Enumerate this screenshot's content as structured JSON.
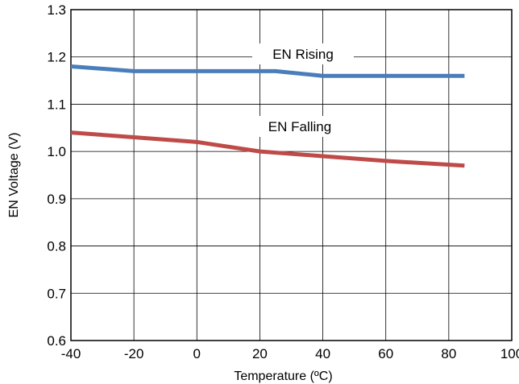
{
  "chart_data": {
    "type": "line",
    "title": "",
    "xlabel": "Temperature (ºC)",
    "ylabel": "EN Voltage (V)",
    "xlim": [
      -40,
      100
    ],
    "ylim": [
      0.6,
      1.3
    ],
    "xticks": [
      -40,
      -20,
      0,
      20,
      40,
      60,
      80,
      100
    ],
    "xtick_labels": [
      "-40",
      "-20",
      "0",
      "20",
      "40",
      "60",
      "80",
      "100"
    ],
    "yticks": [
      0.6,
      0.7,
      0.8,
      0.9,
      1.0,
      1.1,
      1.2,
      1.3
    ],
    "ytick_labels": [
      "0.6",
      "0.7",
      "0.8",
      "0.9",
      "1.0",
      "1.1",
      "1.2",
      "1.3"
    ],
    "grid": true,
    "legend": "none",
    "series": [
      {
        "name": "EN Rising",
        "color": "#4a7ebb",
        "x": [
          -40,
          -20,
          0,
          25,
          40,
          60,
          85
        ],
        "y": [
          1.18,
          1.17,
          1.17,
          1.17,
          1.16,
          1.16,
          1.16
        ]
      },
      {
        "name": "EN Falling",
        "color": "#be4b48",
        "x": [
          -40,
          -20,
          0,
          20,
          40,
          60,
          85
        ],
        "y": [
          1.04,
          1.03,
          1.02,
          1.0,
          0.99,
          0.98,
          0.97
        ]
      }
    ]
  }
}
